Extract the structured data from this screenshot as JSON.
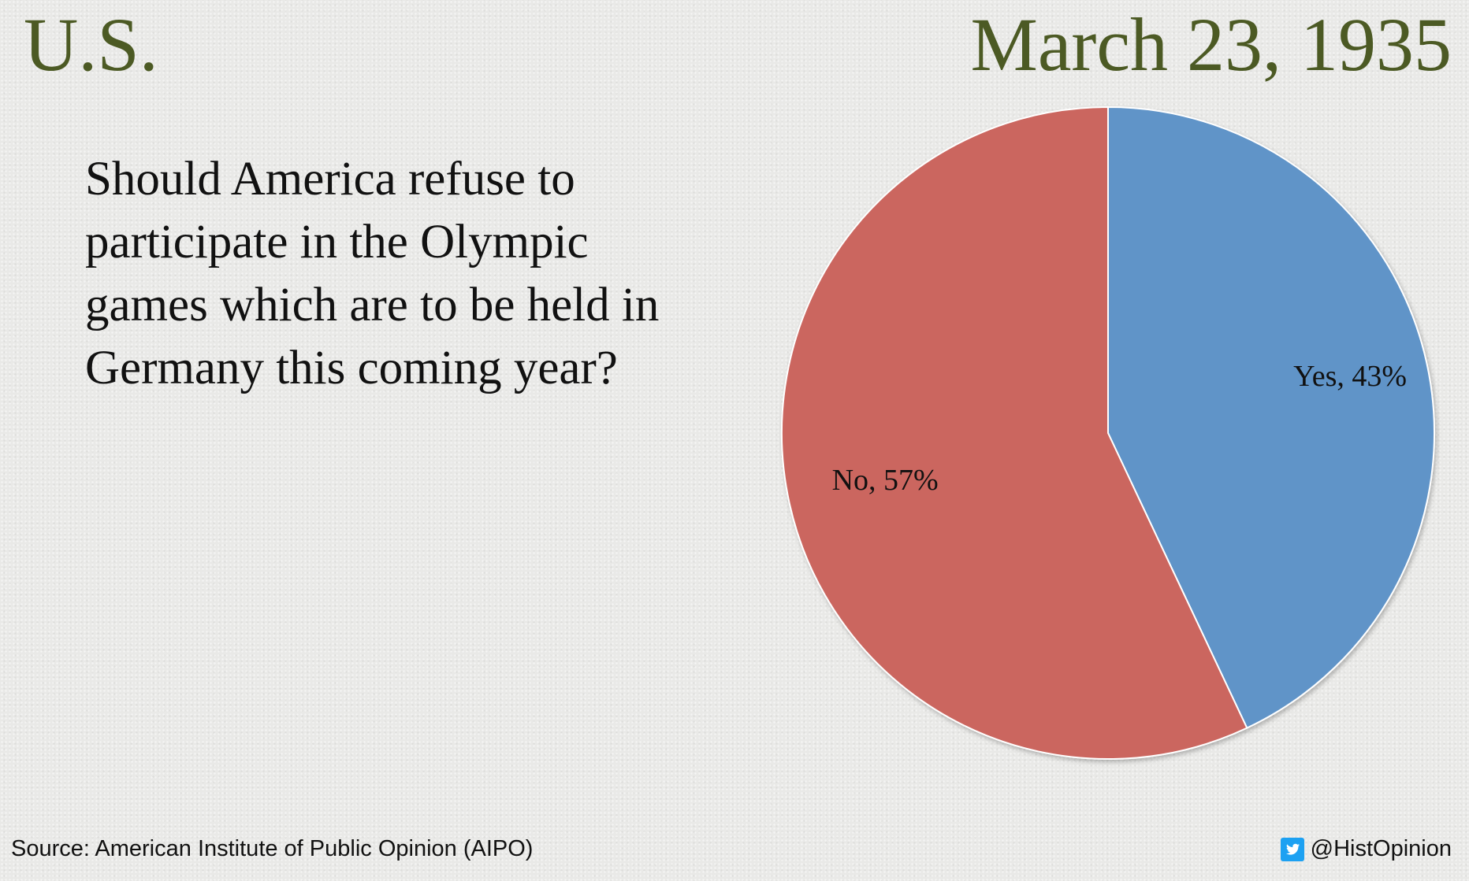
{
  "header": {
    "country": "U.S.",
    "date": "March 23, 1935"
  },
  "question": "Should America refuse to participate in the Olympic games which are to be held in Germany this coming year?",
  "footer": {
    "source": "Source: American Institute of Public Opinion (AIPO)",
    "handle": "@HistOpinion",
    "icon": "twitter-icon"
  },
  "colors": {
    "header_text": "#4c5a24",
    "yes": "#6094c8",
    "no": "#cb665f",
    "twitter": "#1da1f2"
  },
  "chart_data": {
    "type": "pie",
    "title": "",
    "categories": [
      "Yes",
      "No"
    ],
    "values": [
      43,
      57
    ],
    "labels": [
      "Yes, 43%",
      "No, 57%"
    ],
    "colors": [
      "#6094c8",
      "#cb665f"
    ],
    "start": "12 o'clock",
    "direction": "clockwise",
    "legend": "none"
  }
}
